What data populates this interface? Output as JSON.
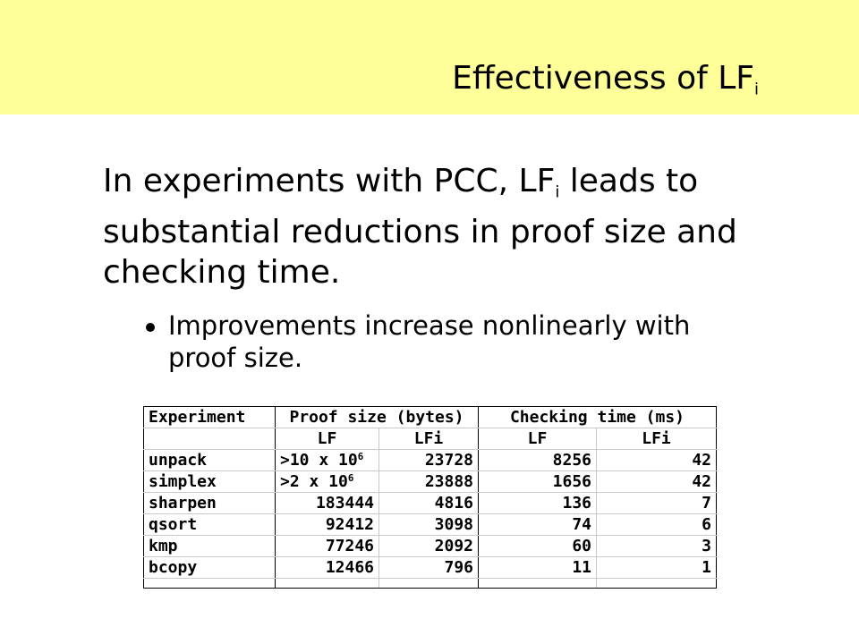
{
  "colors": {
    "header_band": "#ffff99"
  },
  "slide": {
    "title_main": "Effectiveness of LF",
    "title_sub": "i",
    "body_part1": "In experiments with PCC, LF",
    "body_sub": "i",
    "body_part2": "leads to substantial reductions in proof size and checking time.",
    "bullet": "Improvements increase nonlinearly with proof size."
  },
  "table": {
    "header1": [
      "Experiment",
      "Proof size (bytes)",
      "Checking time (ms)"
    ],
    "header2": [
      "LF",
      "LFi",
      "LF",
      "LFi"
    ],
    "rows": [
      {
        "name": "unpack",
        "lf_size_base": ">10 x 10",
        "lf_size_exp": "6",
        "lfi_size": "23728",
        "lf_time": "8256",
        "lfi_time": "42"
      },
      {
        "name": "simplex",
        "lf_size_base": ">2 x 10",
        "lf_size_exp": "6",
        "lfi_size": "23888",
        "lf_time": "1656",
        "lfi_time": "42"
      },
      {
        "name": "sharpen",
        "lf_size": "183444",
        "lfi_size": "4816",
        "lf_time": "136",
        "lfi_time": "7"
      },
      {
        "name": "qsort",
        "lf_size": "92412",
        "lfi_size": "3098",
        "lf_time": "74",
        "lfi_time": "6"
      },
      {
        "name": "kmp",
        "lf_size": "77246",
        "lfi_size": "2092",
        "lf_time": "60",
        "lfi_time": "3"
      },
      {
        "name": "bcopy",
        "lf_size": "12466",
        "lfi_size": "796",
        "lf_time": "11",
        "lfi_time": "1"
      }
    ]
  }
}
